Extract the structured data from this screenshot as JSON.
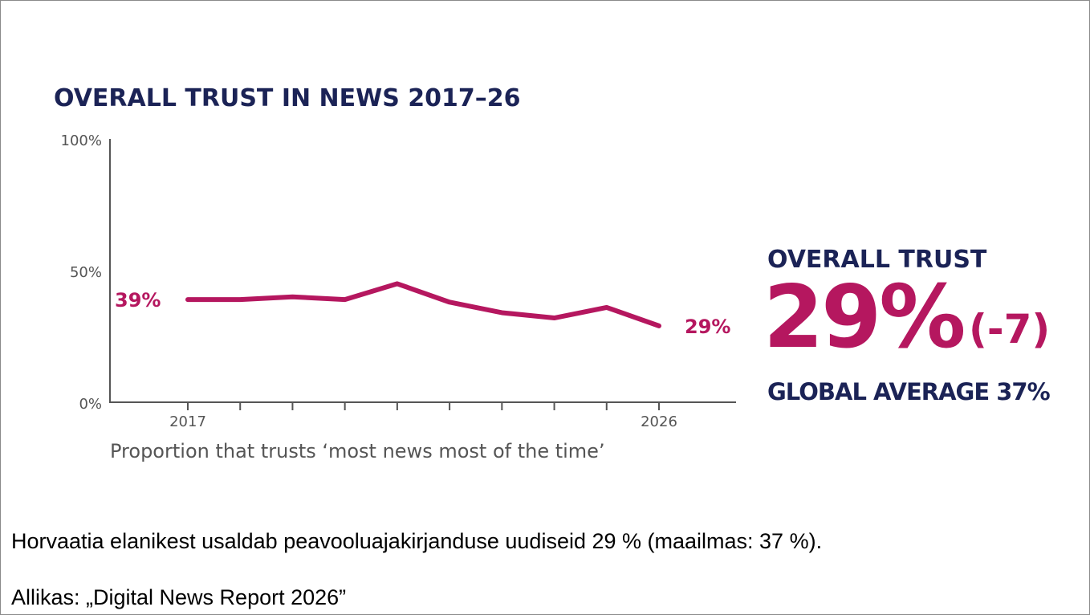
{
  "chart_data": {
    "type": "line",
    "title": "OVERALL TRUST IN NEWS 2017–26",
    "xlabel": "Proportion that trusts ‘most news most of the time’",
    "ylabel": "",
    "x": [
      2017,
      2018,
      2019,
      2020,
      2021,
      2022,
      2023,
      2024,
      2025,
      2026
    ],
    "x_tick_labels": [
      "2017",
      "2026"
    ],
    "y_tick_labels": [
      "100%",
      "50%",
      "0%"
    ],
    "ylim": [
      0,
      100
    ],
    "grid": false,
    "series": [
      {
        "values": [
          39,
          39,
          40,
          39,
          45,
          38,
          34,
          32,
          36,
          29
        ]
      }
    ],
    "data_labels": {
      "start": "39%",
      "end": "29%"
    },
    "line_color": "#b5175f"
  },
  "kpi": {
    "label": "OVERALL TRUST",
    "value": "29%",
    "change": "(-7)",
    "global": "GLOBAL AVERAGE 37%"
  },
  "caption": "Horvaatia elanikest usaldab peavooluajakirjanduse uudiseid  29 %  (maailmas:  37 %).",
  "source": "Allikas: „Digital News Report 2026”",
  "colors": {
    "accent": "#b5175f",
    "navy": "#1b2356",
    "axis": "#555555"
  }
}
